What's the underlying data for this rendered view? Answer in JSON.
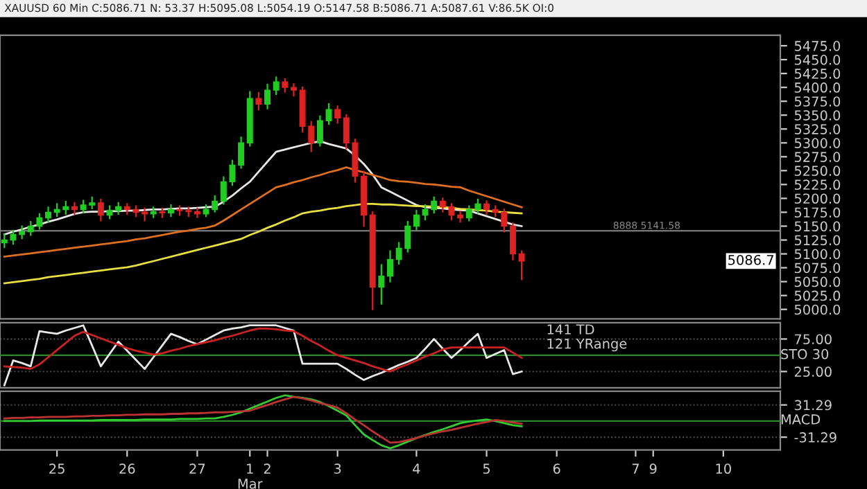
{
  "chart_data": [
    {
      "type": "candlestick",
      "title": "XAUUSD 60 Min C:5086.71 N: 53.37 H:5095.08 L:5054.19 O:5147.58 B:5086.71 A:5087.61 V:86.5K OI:0",
      "categories": [
        null,
        null,
        null,
        null,
        null,
        null,
        null,
        null,
        null,
        null,
        null,
        null,
        null,
        null,
        null,
        null,
        null,
        null,
        null,
        null,
        null,
        null,
        null,
        null,
        null,
        null,
        null,
        null,
        null,
        null,
        null,
        null,
        null,
        null,
        null,
        null,
        null,
        null,
        null,
        null,
        null,
        null,
        null,
        null,
        null,
        null,
        null,
        null,
        null,
        null,
        null,
        null,
        null,
        null,
        null,
        null,
        null,
        null,
        null,
        null,
        null,
        null,
        null,
        null,
        null,
        null,
        null,
        null,
        null,
        null,
        null,
        null,
        null,
        null,
        null,
        null,
        null,
        null,
        null,
        null,
        null,
        null,
        null,
        null,
        null,
        null,
        null,
        null,
        null
      ],
      "ohlc": [
        [
          5120,
          5135,
          5112,
          5125
        ],
        [
          5125,
          5142,
          5118,
          5135
        ],
        [
          5135,
          5150,
          5128,
          5140
        ],
        [
          5140,
          5158,
          5134,
          5150
        ],
        [
          5150,
          5172,
          5145,
          5165
        ],
        [
          5165,
          5184,
          5158,
          5175
        ],
        [
          5175,
          5190,
          5168,
          5180
        ],
        [
          5180,
          5194,
          5172,
          5185
        ],
        [
          5185,
          5192,
          5172,
          5180
        ],
        [
          5180,
          5196,
          5174,
          5188
        ],
        [
          5188,
          5202,
          5182,
          5192
        ],
        [
          5192,
          5198,
          5160,
          5170
        ],
        [
          5170,
          5186,
          5164,
          5178
        ],
        [
          5178,
          5192,
          5172,
          5185
        ],
        [
          5185,
          5190,
          5172,
          5180
        ],
        [
          5180,
          5186,
          5168,
          5175
        ],
        [
          5175,
          5182,
          5160,
          5172
        ],
        [
          5172,
          5184,
          5166,
          5176
        ],
        [
          5176,
          5182,
          5166,
          5174
        ],
        [
          5174,
          5188,
          5168,
          5180
        ],
        [
          5180,
          5186,
          5170,
          5178
        ],
        [
          5178,
          5184,
          5168,
          5176
        ],
        [
          5176,
          5182,
          5166,
          5172
        ],
        [
          5172,
          5188,
          5168,
          5180
        ],
        [
          5180,
          5204,
          5176,
          5195
        ],
        [
          5195,
          5238,
          5190,
          5230
        ],
        [
          5230,
          5268,
          5224,
          5260
        ],
        [
          5260,
          5310,
          5255,
          5300
        ],
        [
          5300,
          5392,
          5295,
          5380
        ],
        [
          5380,
          5390,
          5360,
          5370
        ],
        [
          5370,
          5405,
          5362,
          5395
        ],
        [
          5395,
          5418,
          5388,
          5410
        ],
        [
          5410,
          5415,
          5392,
          5400
        ],
        [
          5400,
          5406,
          5385,
          5395
        ],
        [
          5395,
          5400,
          5320,
          5330
        ],
        [
          5330,
          5338,
          5285,
          5300
        ],
        [
          5300,
          5348,
          5295,
          5340
        ],
        [
          5340,
          5370,
          5334,
          5360
        ],
        [
          5360,
          5366,
          5336,
          5345
        ],
        [
          5345,
          5350,
          5290,
          5300
        ],
        [
          5300,
          5306,
          5230,
          5240
        ],
        [
          5240,
          5248,
          5150,
          5170
        ],
        [
          5170,
          5175,
          5000,
          5040
        ],
        [
          5040,
          5080,
          5010,
          5060
        ],
        [
          5060,
          5105,
          5050,
          5090
        ],
        [
          5090,
          5120,
          5082,
          5110
        ],
        [
          5110,
          5158,
          5104,
          5150
        ],
        [
          5150,
          5178,
          5144,
          5170
        ],
        [
          5170,
          5188,
          5162,
          5180
        ],
        [
          5180,
          5202,
          5174,
          5195
        ],
        [
          5195,
          5200,
          5176,
          5185
        ],
        [
          5185,
          5190,
          5162,
          5170
        ],
        [
          5170,
          5176,
          5158,
          5165
        ],
        [
          5165,
          5186,
          5160,
          5180
        ],
        [
          5180,
          5198,
          5174,
          5190
        ],
        [
          5190,
          5195,
          5172,
          5180
        ],
        [
          5180,
          5186,
          5168,
          5175
        ],
        [
          5175,
          5180,
          5140,
          5150
        ],
        [
          5150,
          5155,
          5090,
          5100
        ],
        [
          5100,
          5105,
          5054,
          5087
        ],
        null,
        null,
        null,
        null,
        null,
        null,
        null,
        null,
        null,
        null,
        null,
        null,
        null,
        null,
        null,
        null,
        null,
        null,
        null,
        null,
        null,
        null,
        null,
        null,
        null,
        null,
        null,
        null,
        null
      ],
      "colors": [
        "#22cc22",
        "#22cc22",
        "#22cc22",
        "#22cc22",
        "#22cc22",
        "#22cc22",
        "#22cc22",
        "#22cc22",
        "#dd2222",
        "#22cc22",
        "#22cc22",
        "#dd2222",
        "#22cc22",
        "#22cc22",
        "#dd2222",
        "#dd2222",
        "#dd2222",
        "#22cc22",
        "#dd2222",
        "#22cc22",
        "#dd2222",
        "#dd2222",
        "#dd2222",
        "#22cc22",
        "#22cc22",
        "#22cc22",
        "#22cc22",
        "#22cc22",
        "#22cc22",
        "#dd2222",
        "#22cc22",
        "#22cc22",
        "#dd2222",
        "#dd2222",
        "#dd2222",
        "#dd2222",
        "#22cc22",
        "#22cc22",
        "#dd2222",
        "#dd2222",
        "#dd2222",
        "#dd2222",
        "#dd2222",
        "#22cc22",
        "#22cc22",
        "#22cc22",
        "#22cc22",
        "#22cc22",
        "#22cc22",
        "#22cc22",
        "#dd2222",
        "#dd2222",
        "#dd2222",
        "#22cc22",
        "#22cc22",
        "#dd2222",
        "#dd2222",
        "#dd2222",
        "#dd2222",
        "#dd2222",
        null,
        null,
        null,
        null,
        null,
        null,
        null,
        null,
        null,
        null,
        null,
        null,
        null,
        null,
        null,
        null,
        null,
        null,
        null,
        null,
        null,
        null,
        null,
        null,
        null,
        null,
        null,
        null,
        null
      ],
      "series": [
        {
          "type": "line",
          "color": "#e8e8e8",
          "values": [
            5135,
            5140,
            5144,
            5149,
            5153,
            5158,
            5162,
            5167,
            5172,
            5175,
            5176,
            5176,
            5177,
            5177,
            5178,
            5178,
            5179,
            5180,
            5180,
            5181,
            5182,
            5182,
            5183,
            5184,
            5185,
            5194,
            5205,
            5218,
            5230,
            5248,
            5266,
            5284,
            5288,
            5292,
            5296,
            5300,
            5303,
            5298,
            5294,
            5290,
            5277,
            5262,
            5243,
            5220,
            5212,
            5204,
            5196,
            5188,
            5184,
            5183,
            5182,
            5180,
            5179,
            5178,
            5173,
            5168,
            5163,
            5158,
            5153,
            5150,
            null,
            null,
            null,
            null,
            null,
            null,
            null,
            null,
            null,
            null,
            null,
            null,
            null,
            null,
            null,
            null,
            null,
            null,
            null,
            null,
            null,
            null,
            null,
            null,
            null,
            null,
            null,
            null,
            null
          ]
        },
        {
          "type": "line",
          "color": "#e07020",
          "values": [
            5095,
            5097,
            5099,
            5101,
            5103,
            5105,
            5107,
            5109,
            5111,
            5113,
            5115,
            5117,
            5119,
            5121,
            5123,
            5126,
            5128,
            5131,
            5134,
            5137,
            5140,
            5142,
            5145,
            5147,
            5151,
            5160,
            5170,
            5180,
            5190,
            5200,
            5210,
            5220,
            5224,
            5229,
            5233,
            5238,
            5242,
            5247,
            5251,
            5256,
            5251,
            5247,
            5242,
            5238,
            5233,
            5231,
            5230,
            5228,
            5226,
            5225,
            5223,
            5221,
            5220,
            5214,
            5209,
            5204,
            5199,
            5194,
            5189,
            5184,
            null,
            null,
            null,
            null,
            null,
            null,
            null,
            null,
            null,
            null,
            null,
            null,
            null,
            null,
            null,
            null,
            null,
            null,
            null,
            null,
            null,
            null,
            null,
            null,
            null,
            null,
            null,
            null,
            null
          ]
        },
        {
          "type": "line",
          "color": "#e8e040",
          "values": [
            5047,
            5049,
            5051,
            5053,
            5055,
            5058,
            5060,
            5062,
            5064,
            5066,
            5068,
            5070,
            5072,
            5074,
            5076,
            5079,
            5083,
            5087,
            5091,
            5095,
            5099,
            5103,
            5107,
            5111,
            5115,
            5119,
            5123,
            5127,
            5134,
            5140,
            5147,
            5153,
            5160,
            5166,
            5173,
            5176,
            5178,
            5181,
            5183,
            5186,
            5188,
            5190,
            5190,
            5189,
            5189,
            5188,
            5187,
            5186,
            5186,
            5185,
            5184,
            5183,
            5181,
            5180,
            5179,
            5178,
            5176,
            5175,
            5174,
            5173,
            null,
            null,
            null,
            null,
            null,
            null,
            null,
            null,
            null,
            null,
            null,
            null,
            null,
            null,
            null,
            null,
            null,
            null,
            null,
            null,
            null,
            null,
            null,
            null,
            null,
            null,
            null,
            null,
            null
          ]
        }
      ],
      "ref_lines": [
        {
          "axis": "y",
          "value": 5141.58,
          "label": "8888 5141.58",
          "color": "#888888"
        }
      ],
      "annotations": [
        "5086.7"
      ],
      "ylim": [
        4983,
        5494
      ],
      "yticks": [
        {
          "value": 5000,
          "label": "5000.0"
        },
        {
          "value": 5025,
          "label": "5025.0"
        },
        {
          "value": 5050,
          "label": "5050.0"
        },
        {
          "value": 5075,
          "label": "5075.0"
        },
        {
          "value": 5100,
          "label": "5100.0"
        },
        {
          "value": 5125,
          "label": "5125.0"
        },
        {
          "value": 5150,
          "label": "5150.0"
        },
        {
          "value": 5175,
          "label": "5175.0"
        },
        {
          "value": 5200,
          "label": "5200.0"
        },
        {
          "value": 5225,
          "label": "5225.0"
        },
        {
          "value": 5250,
          "label": "5250.0"
        },
        {
          "value": 5275,
          "label": "5275.0"
        },
        {
          "value": 5300,
          "label": "5300.0"
        },
        {
          "value": 5325,
          "label": "5325.0"
        },
        {
          "value": 5350,
          "label": "5350.0"
        },
        {
          "value": 5375,
          "label": "5375.0"
        },
        {
          "value": 5400,
          "label": "5400.0"
        },
        {
          "value": 5425,
          "label": "5425.0"
        },
        {
          "value": 5450,
          "label": "5450.0"
        },
        {
          "value": 5475,
          "label": "5475.0"
        }
      ],
      "tick_labels": "y"
    },
    {
      "type": "line",
      "ylabel": "STO 30",
      "categories": [
        null,
        null,
        null,
        null,
        null,
        null,
        null,
        null,
        null,
        null,
        null,
        null,
        null,
        null,
        null,
        null,
        null,
        null,
        null,
        null,
        null,
        null,
        null,
        null,
        null,
        null,
        null,
        null,
        null,
        null,
        null,
        null,
        null,
        null,
        null,
        null,
        null,
        null,
        null,
        null,
        null,
        null,
        null,
        null,
        null,
        null,
        null,
        null,
        null,
        null,
        null,
        null,
        null,
        null,
        null,
        null,
        null,
        null,
        null,
        null,
        null,
        null,
        null,
        null,
        null,
        null,
        null,
        null,
        null,
        null,
        null,
        null,
        null,
        null,
        null,
        null,
        null,
        null,
        null,
        null,
        null,
        null,
        null,
        null,
        null,
        null,
        null,
        null,
        null
      ],
      "series": [
        {
          "color": "#e8e8e8",
          "values": [
            4,
            42,
            38,
            33,
            87,
            85,
            83,
            88,
            92,
            96,
            65,
            33,
            52,
            71,
            57,
            43,
            29,
            47,
            65,
            83,
            78,
            72,
            67,
            74,
            81,
            88,
            91,
            93,
            96,
            96,
            96,
            96,
            92,
            88,
            37,
            37,
            37,
            37,
            37,
            29,
            20,
            12,
            18,
            23,
            29,
            35,
            40,
            46,
            60,
            75,
            60,
            46,
            58,
            71,
            83,
            46,
            52,
            58,
            21,
            25,
            null,
            null,
            null,
            null,
            null,
            null,
            null,
            null,
            null,
            null,
            null,
            null,
            null,
            null,
            null,
            null,
            null,
            null,
            null,
            null,
            null,
            null,
            null,
            null,
            null,
            null,
            null,
            null,
            null
          ]
        },
        {
          "color": "#cc2222",
          "values": [
            33,
            32,
            31,
            29,
            36,
            47,
            58,
            69,
            80,
            86,
            81,
            76,
            71,
            66,
            61,
            57,
            54,
            51,
            53,
            57,
            60,
            64,
            67,
            70,
            73,
            77,
            80,
            84,
            88,
            91,
            91,
            90,
            88,
            87,
            80,
            72,
            65,
            57,
            50,
            46,
            42,
            38,
            33,
            29,
            25,
            31,
            36,
            42,
            48,
            53,
            59,
            62,
            62,
            62,
            62,
            62,
            62,
            62,
            54,
            46,
            null,
            null,
            null,
            null,
            null,
            null,
            null,
            null,
            null,
            null,
            null,
            null,
            null,
            null,
            null,
            null,
            null,
            null,
            null,
            null,
            null,
            null,
            null,
            null,
            null,
            null,
            null,
            null,
            null
          ]
        }
      ],
      "ref_lines": [
        {
          "axis": "y",
          "value": 50,
          "color": "#2a8a2a"
        }
      ],
      "annotations": [
        "141 TD",
        "121 YRange"
      ],
      "grid": "y",
      "ylim": [
        0,
        100
      ],
      "yticks": [
        {
          "value": 25,
          "label": "25.00"
        },
        {
          "value": 75,
          "label": "75.00"
        }
      ],
      "tick_labels": "y"
    },
    {
      "type": "line",
      "ylabel": "MACD",
      "categories": [
        null,
        null,
        null,
        null,
        null,
        null,
        "25",
        null,
        null,
        null,
        null,
        null,
        null,
        null,
        "26",
        null,
        null,
        null,
        null,
        null,
        null,
        null,
        "27",
        null,
        null,
        null,
        null,
        null,
        "1\nMar",
        null,
        "2",
        null,
        null,
        null,
        null,
        null,
        null,
        null,
        "3",
        null,
        null,
        null,
        null,
        null,
        null,
        null,
        null,
        "4",
        null,
        null,
        null,
        null,
        null,
        null,
        null,
        "5",
        null,
        null,
        null,
        null,
        null,
        null,
        null,
        "6",
        null,
        null,
        null,
        null,
        null,
        null,
        null,
        null,
        "7",
        null,
        "9",
        null,
        null,
        null,
        null,
        null,
        null,
        null,
        "10",
        null,
        null,
        null,
        null,
        null,
        null
      ],
      "series": [
        {
          "color": "#33cc33",
          "values": [
            0,
            0,
            0,
            0,
            1,
            1,
            1,
            1,
            1,
            1,
            1,
            2,
            2,
            2,
            2,
            2,
            3,
            3,
            3,
            3,
            4,
            4,
            4,
            5,
            5,
            8,
            12,
            17,
            24,
            31,
            38,
            45,
            50,
            47,
            45,
            42,
            37,
            29,
            20,
            11,
            -8,
            -26,
            -37,
            -47,
            -53,
            -47,
            -40,
            -33,
            -27,
            -21,
            -16,
            -10,
            -4,
            -1,
            1,
            3,
            0,
            -4,
            -8,
            -10,
            null,
            null,
            null,
            null,
            null,
            null,
            null,
            null,
            null,
            null,
            null,
            null,
            null,
            null,
            null,
            null,
            null,
            null,
            null,
            null,
            null,
            null,
            null,
            null,
            null,
            null,
            null,
            null,
            null
          ]
        },
        {
          "color": "#bb3333",
          "values": [
            5,
            6,
            6,
            7,
            7,
            8,
            8,
            8,
            9,
            9,
            10,
            10,
            11,
            11,
            12,
            12,
            13,
            13,
            13,
            14,
            14,
            15,
            15,
            16,
            17,
            17,
            18,
            19,
            20,
            26,
            31,
            37,
            42,
            47,
            44,
            40,
            35,
            31,
            26,
            15,
            3,
            -8,
            -20,
            -31,
            -42,
            -41,
            -37,
            -33,
            -28,
            -24,
            -20,
            -17,
            -13,
            -9,
            -5,
            -2,
            2,
            0,
            -3,
            -5,
            null,
            null,
            null,
            null,
            null,
            null,
            null,
            null,
            null,
            null,
            null,
            null,
            null,
            null,
            null,
            null,
            null,
            null,
            null,
            null,
            null,
            null,
            null,
            null,
            null,
            null,
            null,
            null,
            null
          ]
        }
      ],
      "ref_lines": [
        {
          "axis": "y",
          "value": 0,
          "color": "#2a8a2a"
        }
      ],
      "grid": "y",
      "ylim": [
        -56,
        58
      ],
      "yticks": [
        {
          "value": -31.29,
          "label": "-31.29"
        },
        {
          "value": 31.29,
          "label": "31.29"
        }
      ]
    }
  ]
}
